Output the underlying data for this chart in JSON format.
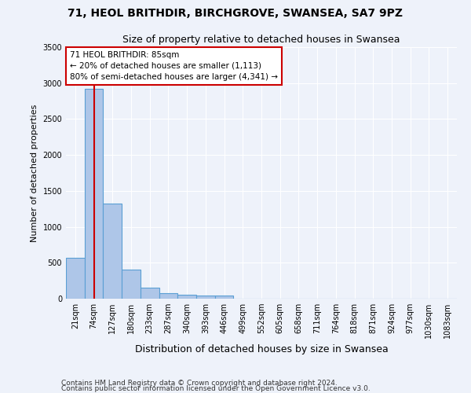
{
  "title_line1": "71, HEOL BRITHDIR, BIRCHGROVE, SWANSEA, SA7 9PZ",
  "title_line2": "Size of property relative to detached houses in Swansea",
  "xlabel": "Distribution of detached houses by size in Swansea",
  "ylabel": "Number of detached properties",
  "footer_line1": "Contains HM Land Registry data © Crown copyright and database right 2024.",
  "footer_line2": "Contains public sector information licensed under the Open Government Licence v3.0.",
  "bin_labels": [
    "21sqm",
    "74sqm",
    "127sqm",
    "180sqm",
    "233sqm",
    "287sqm",
    "340sqm",
    "393sqm",
    "446sqm",
    "499sqm",
    "552sqm",
    "605sqm",
    "658sqm",
    "711sqm",
    "764sqm",
    "818sqm",
    "871sqm",
    "924sqm",
    "977sqm",
    "1030sqm",
    "1083sqm"
  ],
  "bar_values": [
    570,
    2920,
    1320,
    400,
    155,
    75,
    55,
    45,
    40,
    0,
    0,
    0,
    0,
    0,
    0,
    0,
    0,
    0,
    0,
    0,
    0
  ],
  "bar_color": "#aec6e8",
  "bar_edge_color": "#5a9fd4",
  "property_bin_index": 1,
  "marker_line_color": "#cc0000",
  "annotation_text_line1": "71 HEOL BRITHDIR: 85sqm",
  "annotation_text_line2": "← 20% of detached houses are smaller (1,113)",
  "annotation_text_line3": "80% of semi-detached houses are larger (4,341) →",
  "annotation_box_facecolor": "#ffffff",
  "annotation_box_edgecolor": "#cc0000",
  "ylim": [
    0,
    3500
  ],
  "background_color": "#eef2fa",
  "grid_color": "#ffffff",
  "figsize": [
    6.0,
    5.0
  ],
  "dpi": 100,
  "title_fontsize": 10,
  "subtitle_fontsize": 9,
  "ylabel_fontsize": 8,
  "xlabel_fontsize": 9,
  "tick_fontsize": 7,
  "footer_fontsize": 6.5,
  "annotation_fontsize": 7.5
}
